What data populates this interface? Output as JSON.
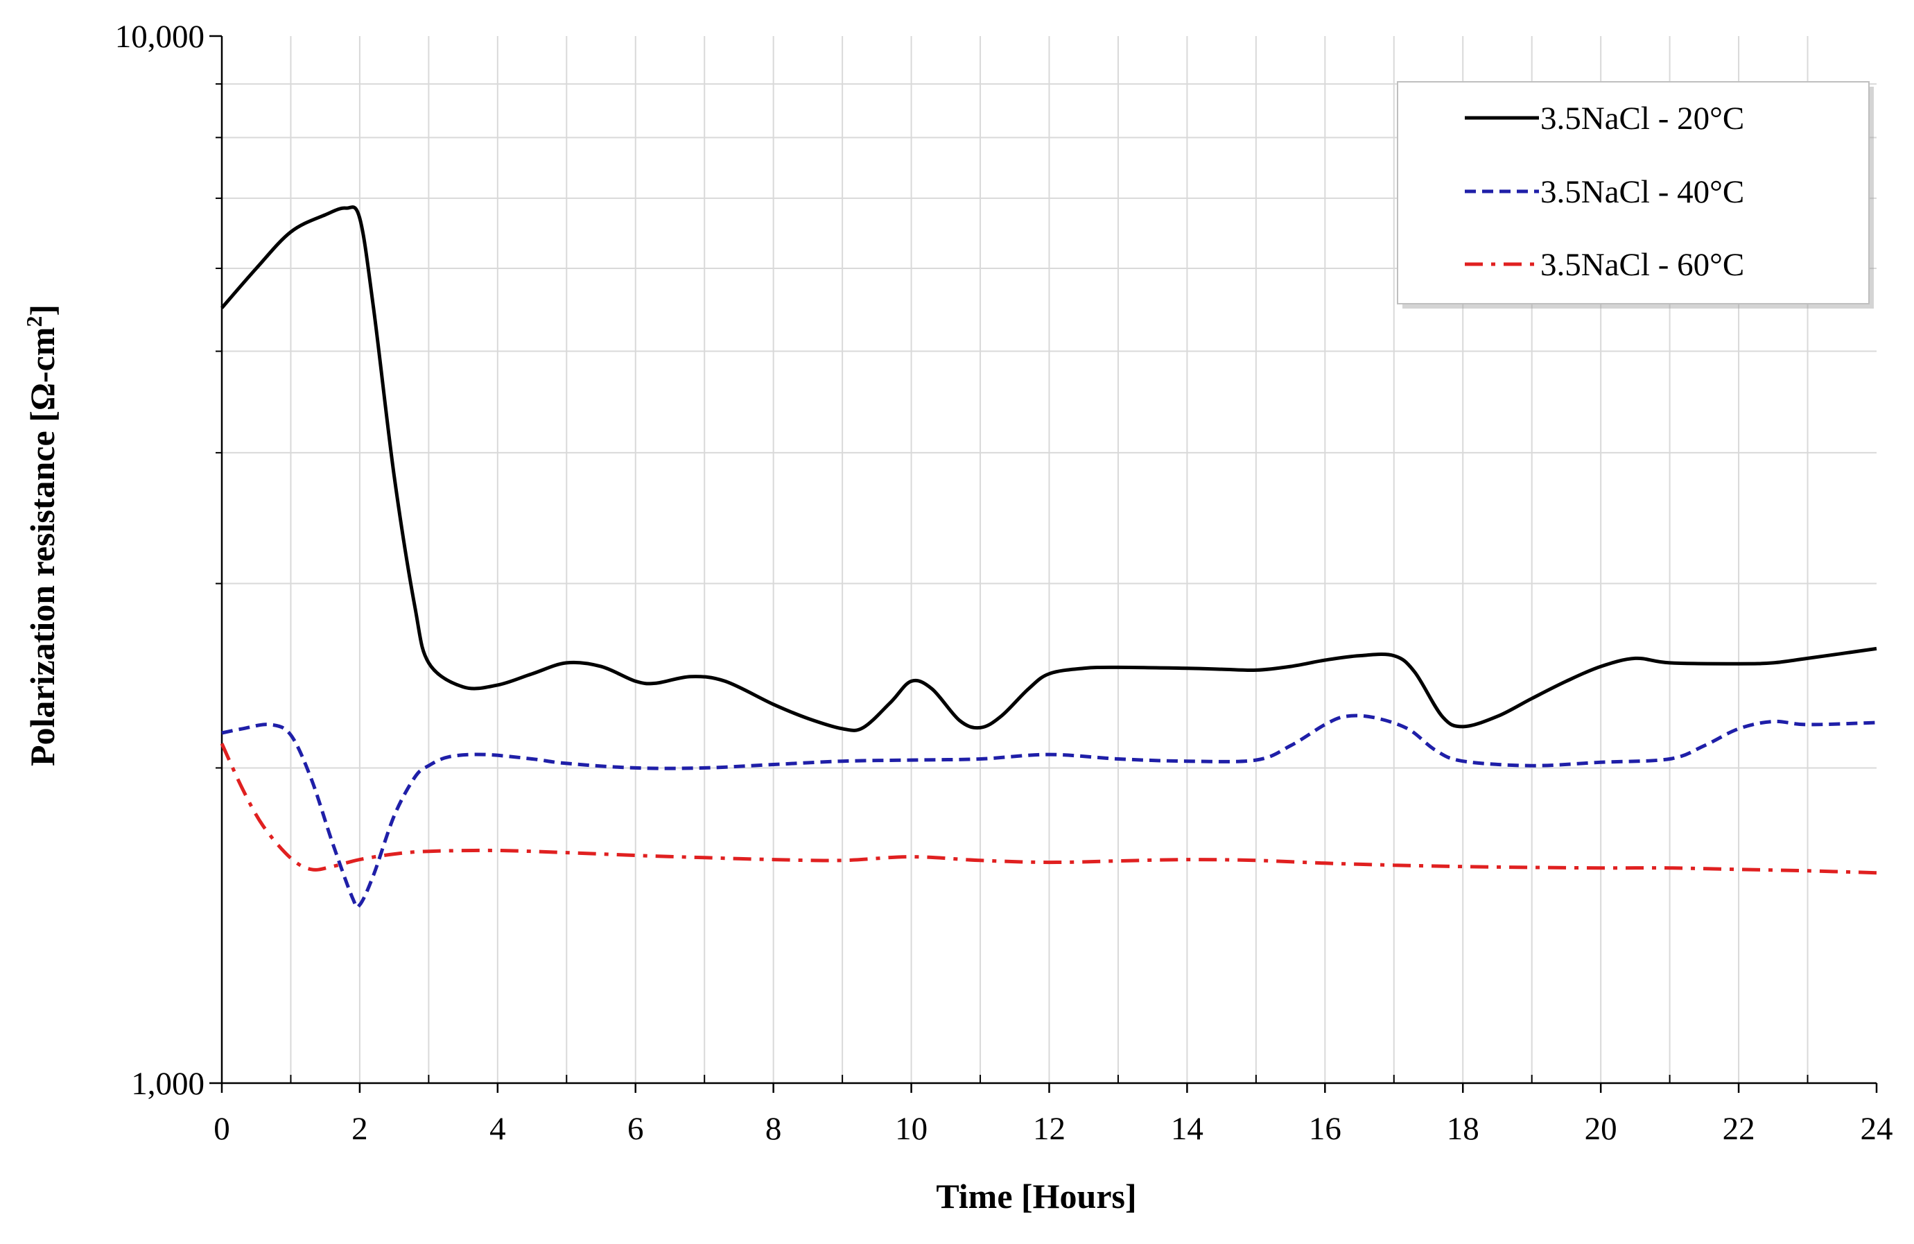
{
  "chart_data": {
    "type": "line",
    "title": "",
    "xlabel": "Time [Hours]",
    "ylabel_main": "Polarization resistance [Ω-cm",
    "ylabel_sup": "2",
    "ylabel_end": "]",
    "xlim": [
      0,
      24
    ],
    "ylim": [
      1000,
      10000
    ],
    "yscale": "log",
    "x_ticks": [
      0,
      2,
      4,
      6,
      8,
      10,
      12,
      14,
      16,
      18,
      20,
      22,
      24
    ],
    "x_tick_labels": [
      "0",
      "2",
      "4",
      "6",
      "8",
      "10",
      "12",
      "14",
      "16",
      "18",
      "20",
      "22",
      "24"
    ],
    "y_tick_labels": [
      "1,000",
      "10,000"
    ],
    "grid": true,
    "legend_position": "top-right",
    "series": [
      {
        "name": "3.5NaCl - 20°C",
        "color": "#000000",
        "dash": "solid",
        "x": [
          0,
          0.5,
          1,
          1.5,
          1.8,
          2.0,
          2.2,
          2.5,
          2.8,
          3.0,
          3.5,
          4,
          4.5,
          5,
          5.5,
          6,
          6.3,
          6.8,
          7.3,
          8,
          8.5,
          9,
          9.3,
          9.7,
          10,
          10.3,
          10.7,
          11,
          11.3,
          11.7,
          12,
          12.5,
          13,
          14,
          14.5,
          15,
          15.5,
          16,
          16.5,
          17,
          17.3,
          17.7,
          18,
          18.5,
          19,
          19.5,
          20,
          20.5,
          21,
          22,
          22.5,
          23,
          24
        ],
        "values": [
          5500,
          6000,
          6500,
          6750,
          6850,
          6700,
          5500,
          3800,
          2850,
          2520,
          2390,
          2400,
          2460,
          2520,
          2500,
          2420,
          2410,
          2445,
          2420,
          2300,
          2230,
          2180,
          2185,
          2310,
          2420,
          2380,
          2220,
          2185,
          2240,
          2380,
          2460,
          2490,
          2495,
          2490,
          2485,
          2480,
          2500,
          2535,
          2560,
          2560,
          2470,
          2240,
          2190,
          2240,
          2330,
          2420,
          2500,
          2545,
          2520,
          2515,
          2520,
          2545,
          2600
        ]
      },
      {
        "name": "3.5NaCl - 40°C",
        "color": "#1f1fa8",
        "dash": "dashed",
        "x": [
          0,
          0.3,
          0.7,
          1.0,
          1.3,
          1.6,
          1.9,
          2.0,
          2.2,
          2.5,
          2.8,
          3.0,
          3.3,
          3.8,
          4.5,
          5,
          6,
          7,
          8,
          9,
          10,
          11,
          12,
          13,
          14,
          15,
          15.5,
          16,
          16.3,
          16.7,
          17.2,
          17.6,
          18,
          19,
          20,
          21,
          21.5,
          22,
          22.5,
          23,
          24
        ],
        "values": [
          2160,
          2180,
          2200,
          2150,
          1950,
          1700,
          1500,
          1480,
          1580,
          1800,
          1960,
          2010,
          2050,
          2060,
          2040,
          2020,
          2000,
          2000,
          2015,
          2030,
          2035,
          2040,
          2060,
          2040,
          2030,
          2035,
          2100,
          2200,
          2240,
          2235,
          2180,
          2080,
          2030,
          2010,
          2025,
          2040,
          2100,
          2180,
          2215,
          2200,
          2210
        ]
      },
      {
        "name": "3.5NaCl - 60°C",
        "color": "#e02020",
        "dash": "dashdot",
        "x": [
          0,
          0.3,
          0.6,
          1.0,
          1.3,
          1.6,
          2.0,
          2.5,
          3,
          4,
          5,
          6,
          7,
          8,
          9,
          10,
          11,
          12,
          13,
          14,
          15,
          16,
          17,
          18,
          19,
          20,
          21,
          22,
          23,
          24
        ],
        "values": [
          2110,
          1910,
          1760,
          1640,
          1600,
          1610,
          1635,
          1655,
          1665,
          1668,
          1660,
          1650,
          1642,
          1635,
          1632,
          1645,
          1632,
          1625,
          1630,
          1635,
          1632,
          1622,
          1615,
          1610,
          1607,
          1605,
          1605,
          1600,
          1595,
          1588
        ]
      }
    ]
  }
}
